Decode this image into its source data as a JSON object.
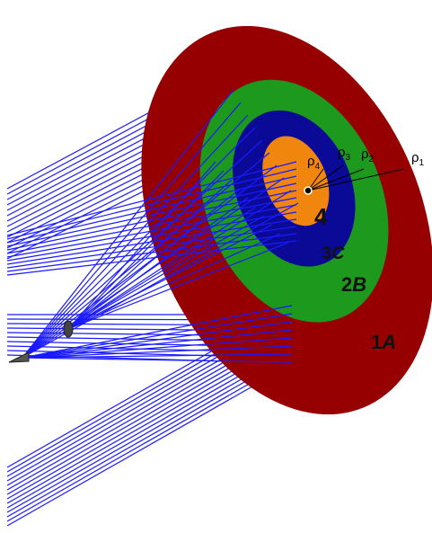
{
  "rho_labels": [
    {
      "base": "ρ",
      "sub": "1"
    },
    {
      "base": "ρ",
      "sub": "2"
    },
    {
      "base": "ρ",
      "sub": "3"
    },
    {
      "base": "ρ",
      "sub": "4"
    }
  ],
  "zones": [
    {
      "number": "1",
      "letter": "A"
    },
    {
      "number": "2",
      "letter": "B"
    },
    {
      "number": "3",
      "letter": "C"
    },
    {
      "number": "4"
    }
  ]
}
